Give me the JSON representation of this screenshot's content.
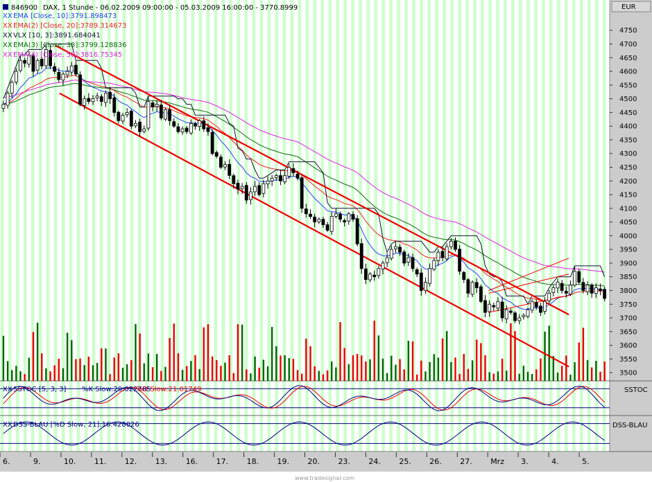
{
  "header": {
    "symbol": "846900",
    "title": "DAX, 1 Stunde - 06.02.2009 09:00:00 - 05.03.2009 16:00:00 - 3770.8999",
    "currency": "EUR"
  },
  "legend": [
    {
      "prefix": "XX",
      "text": "EMA [Close, 10]:3791.898473",
      "color": "#2244ee"
    },
    {
      "prefix": "XX",
      "text": "EMA(2) [Close, 20]:3789.314673",
      "color": "#ee2222"
    },
    {
      "prefix": "XX",
      "text": "VLX [10, 3]:3891.684041",
      "color": "#111133"
    },
    {
      "prefix": "XX",
      "text": "EMA(3) [Close, 38]:3799.128836",
      "color": "#116611"
    },
    {
      "prefix": "XX",
      "text": "EMA(4) [Close, 50]:3816.75345",
      "color": "#dd22dd"
    }
  ],
  "sstoc": {
    "label_prefix": "XX",
    "label_name": "SSTOC [5, 3, 3]",
    "label_k": "%K Slow:29.022785",
    "label_d": "%D Slow:21.01749",
    "panel_tag": "SSTOC"
  },
  "dss": {
    "label_prefix": "XX",
    "label_text": "DSS-BLAU [%D Slow, 21]:10.428026",
    "panel_tag": "DSS-BLAU"
  },
  "footer": {
    "watermark": "www.tradesignal.com"
  },
  "colors": {
    "band": "#ccffcc",
    "bg": "#ffffff",
    "up": "#ffffff",
    "down": "#000000",
    "trend": "#ee0000",
    "vol_green": "#006600",
    "vol_red": "#ee0000",
    "right_panel": "#cccccc"
  },
  "chart_data": {
    "type": "candlestick",
    "y_ticks": [
      3500,
      3550,
      3600,
      3650,
      3700,
      3750,
      3800,
      3850,
      3900,
      3950,
      4000,
      4050,
      4100,
      4150,
      4200,
      4250,
      4300,
      4350,
      4400,
      4450,
      4500,
      4550,
      4600,
      4650,
      4700,
      4750
    ],
    "ylim": [
      3470,
      4810
    ],
    "x_labels": [
      "6.",
      "9.",
      "10.",
      "11.",
      "12.",
      "13.",
      "16.",
      "17.",
      "18.",
      "19.",
      "20.",
      "23.",
      "24.",
      "25.",
      "26.",
      "27.",
      "Mrz",
      "3.",
      "4.",
      "5."
    ],
    "hourly_closes": [
      4480,
      4520,
      4560,
      4600,
      4640,
      4630,
      4660,
      4600,
      4640,
      4620,
      4680,
      4620,
      4600,
      4570,
      4590,
      4600,
      4620,
      4590,
      4480,
      4500,
      4490,
      4500,
      4510,
      4490,
      4520,
      4500,
      4450,
      4420,
      4440,
      4450,
      4400,
      4410,
      4380,
      4390,
      4490,
      4470,
      4480,
      4430,
      4460,
      4420,
      4400,
      4380,
      4390,
      4380,
      4410,
      4400,
      4420,
      4390,
      4380,
      4300,
      4290,
      4250,
      4260,
      4220,
      4190,
      4170,
      4180,
      4130,
      4160,
      4180,
      4150,
      4190,
      4200,
      4210,
      4220,
      4200,
      4220,
      4250,
      4230,
      4210,
      4100,
      4080,
      4070,
      4050,
      4060,
      4040,
      4020,
      4070,
      4080,
      4060,
      4050,
      4080,
      4060,
      3970,
      3880,
      3840,
      3860,
      3850,
      3880,
      3900,
      3920,
      3950,
      3960,
      3940,
      3900,
      3920,
      3880,
      3860,
      3800,
      3830,
      3880,
      3910,
      3940,
      3920,
      3960,
      3980,
      3950,
      3870,
      3840,
      3790,
      3830,
      3810,
      3760,
      3720,
      3750,
      3740,
      3760,
      3700,
      3730,
      3720,
      3690,
      3700,
      3710,
      3730,
      3760,
      3740,
      3720,
      3760,
      3790,
      3810,
      3830,
      3800,
      3790,
      3820,
      3870,
      3830,
      3800,
      3820,
      3790,
      3810,
      3800,
      3771
    ],
    "trend_lines": [
      {
        "name": "channel-upper",
        "from": [
          0.0905,
          4695
        ],
        "to": [
          0.933,
          3712
        ]
      },
      {
        "name": "channel-lower",
        "from": [
          0.0976,
          4520
        ],
        "to": [
          0.933,
          3522
        ]
      },
      {
        "name": "fan-upper",
        "from": [
          0.8015,
          3800
        ],
        "to": [
          0.933,
          3918
        ]
      },
      {
        "name": "fan-mid",
        "from": [
          0.8015,
          3790
        ],
        "to": [
          0.933,
          3860
        ]
      },
      {
        "name": "fan-lower",
        "from": [
          0.8015,
          3720
        ],
        "to": [
          0.933,
          3782
        ]
      }
    ],
    "sstoc_levels": [
      20,
      80
    ],
    "dss_levels": [
      20,
      80
    ]
  }
}
